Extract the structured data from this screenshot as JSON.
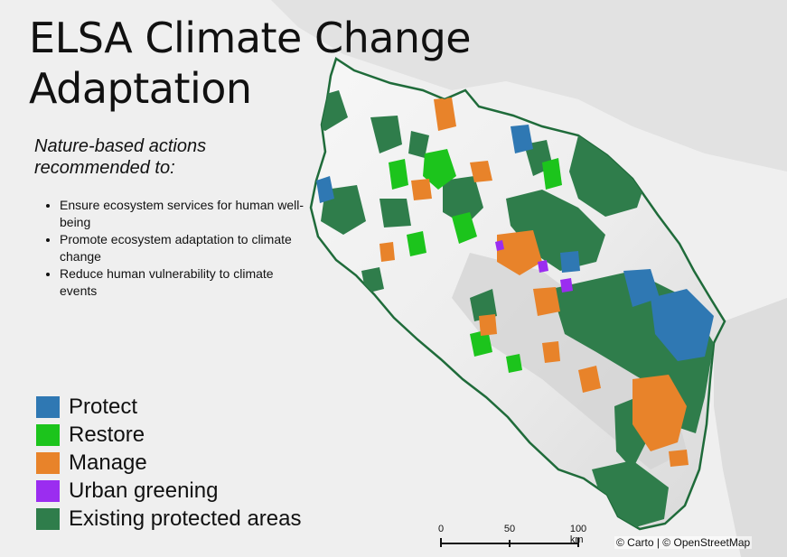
{
  "title_line1": "ELSA Climate Change",
  "title_line2": "Adaptation",
  "subtitle_line1": "Nature-based actions",
  "subtitle_line2": "recommended to:",
  "bullets": [
    "Ensure ecosystem services for human well-being",
    "Promote ecosystem adaptation to climate change",
    "Reduce human vulnerability to climate events"
  ],
  "legend": [
    {
      "label": "Protect",
      "color": "#2f78b3"
    },
    {
      "label": "Restore",
      "color": "#1cc41c"
    },
    {
      "label": "Manage",
      "color": "#e8832a"
    },
    {
      "label": "Urban greening",
      "color": "#9b2df0"
    },
    {
      "label": "Existing protected areas",
      "color": "#2f7d4b"
    }
  ],
  "scale_bar": {
    "ticks": [
      "0",
      "50",
      "100 km"
    ]
  },
  "attribution": "© Carto | © OpenStreetMap"
}
